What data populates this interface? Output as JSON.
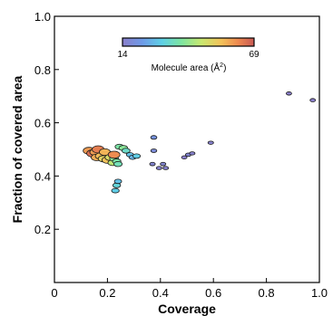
{
  "chart_data": {
    "type": "scatter",
    "title": "",
    "xlabel": "Coverage",
    "ylabel": "Fraction of covered area",
    "xlim": [
      0,
      1.0
    ],
    "ylim": [
      0,
      1.0
    ],
    "x_ticks": [
      "0",
      "0.2",
      "0.4",
      "0.6",
      "0.8",
      "1.0"
    ],
    "y_ticks": [
      "0.2",
      "0.4",
      "0.6",
      "0.8",
      "1.0"
    ],
    "grid": false,
    "colorbar": {
      "label": "Molecule area (Å²)",
      "label_text": "Molecule area (Å",
      "label_sup": "2",
      "label_close": ")",
      "min": 14,
      "max": 69,
      "min_label": "14",
      "max_label": "69",
      "colormap": "turbo",
      "placement": "top-center"
    },
    "points": [
      {
        "x": 0.13,
        "y": 0.495,
        "area": 60
      },
      {
        "x": 0.145,
        "y": 0.485,
        "area": 66
      },
      {
        "x": 0.155,
        "y": 0.49,
        "area": 60
      },
      {
        "x": 0.16,
        "y": 0.47,
        "area": 58
      },
      {
        "x": 0.165,
        "y": 0.5,
        "area": 64
      },
      {
        "x": 0.175,
        "y": 0.475,
        "area": 56
      },
      {
        "x": 0.185,
        "y": 0.465,
        "area": 52
      },
      {
        "x": 0.19,
        "y": 0.49,
        "area": 57
      },
      {
        "x": 0.2,
        "y": 0.46,
        "area": 55
      },
      {
        "x": 0.21,
        "y": 0.47,
        "area": 50
      },
      {
        "x": 0.22,
        "y": 0.45,
        "area": 46
      },
      {
        "x": 0.225,
        "y": 0.465,
        "area": 40
      },
      {
        "x": 0.235,
        "y": 0.455,
        "area": 38
      },
      {
        "x": 0.24,
        "y": 0.445,
        "area": 36
      },
      {
        "x": 0.225,
        "y": 0.48,
        "area": 62
      },
      {
        "x": 0.245,
        "y": 0.51,
        "area": 38
      },
      {
        "x": 0.26,
        "y": 0.505,
        "area": 40
      },
      {
        "x": 0.27,
        "y": 0.495,
        "area": 34
      },
      {
        "x": 0.285,
        "y": 0.48,
        "area": 28
      },
      {
        "x": 0.295,
        "y": 0.47,
        "area": 26
      },
      {
        "x": 0.31,
        "y": 0.475,
        "area": 30
      },
      {
        "x": 0.23,
        "y": 0.345,
        "area": 30
      },
      {
        "x": 0.235,
        "y": 0.365,
        "area": 32
      },
      {
        "x": 0.24,
        "y": 0.38,
        "area": 28
      },
      {
        "x": 0.375,
        "y": 0.545,
        "area": 20
      },
      {
        "x": 0.375,
        "y": 0.495,
        "area": 18
      },
      {
        "x": 0.37,
        "y": 0.445,
        "area": 16
      },
      {
        "x": 0.395,
        "y": 0.43,
        "area": 15
      },
      {
        "x": 0.41,
        "y": 0.445,
        "area": 16
      },
      {
        "x": 0.42,
        "y": 0.43,
        "area": 15
      },
      {
        "x": 0.49,
        "y": 0.47,
        "area": 14
      },
      {
        "x": 0.505,
        "y": 0.48,
        "area": 16
      },
      {
        "x": 0.52,
        "y": 0.485,
        "area": 15
      },
      {
        "x": 0.59,
        "y": 0.525,
        "area": 15
      },
      {
        "x": 0.885,
        "y": 0.71,
        "area": 14
      },
      {
        "x": 0.975,
        "y": 0.685,
        "area": 14
      }
    ]
  }
}
